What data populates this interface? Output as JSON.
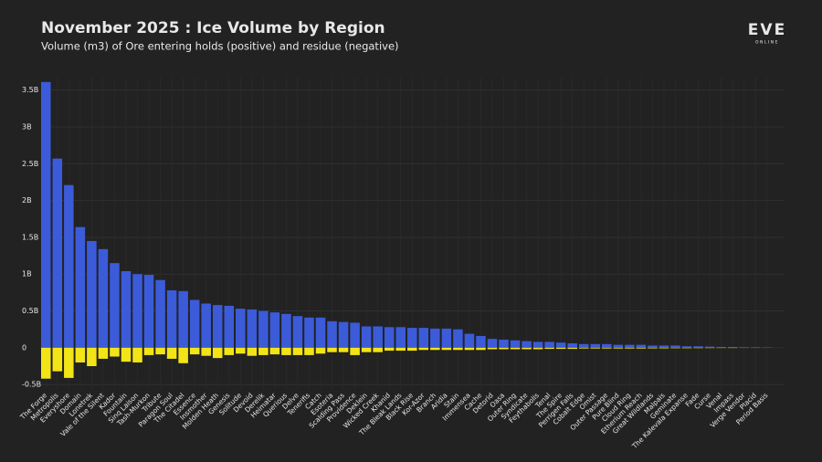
{
  "chart_data": {
    "type": "bar",
    "title": "November 2025 : Ice Volume by Region",
    "subtitle": "Volume (m3) of Ore entering holds (positive) and residue (negative)",
    "logo": "EVE",
    "logo_sub": "ONLINE",
    "categories": [
      "The Forge",
      "Metropolis",
      "Everyshore",
      "Domain",
      "Lonetrek",
      "Vale of the Silent",
      "Kador",
      "Fountain",
      "Sinq Laison",
      "Tash-Murkon",
      "Tribute",
      "Paragon Soul",
      "The Citadel",
      "Essence",
      "Insmother",
      "Molden Heath",
      "Genesis",
      "Solitude",
      "Devoid",
      "Derelik",
      "Heimatar",
      "Querious",
      "Delve",
      "Tenerifis",
      "Catch",
      "Esoteria",
      "Scalding Pass",
      "Providence",
      "Deklein",
      "Wicked Creek",
      "Khanid",
      "The Bleak Lands",
      "Black Rise",
      "Kor-Azor",
      "Branch",
      "Aridia",
      "Stain",
      "Immensea",
      "Cache",
      "Detorid",
      "Oasa",
      "Outer Ring",
      "Syndicate",
      "Feythabolis",
      "Tenal",
      "The Spire",
      "Perrigen Falls",
      "Cobalt Edge",
      "Omist",
      "Outer Passage",
      "Pure Blind",
      "Cloud Ring",
      "Etherium Reach",
      "Great Wildlands",
      "Malpais",
      "Geminate",
      "The Kalevala Expanse",
      "Fade",
      "Curse",
      "Venal",
      "Impass",
      "Verge Vendor",
      "Placid",
      "Period Basis"
    ],
    "series": [
      {
        "color": "#3b5bd9",
        "values": [
          3.61,
          2.57,
          2.21,
          1.64,
          1.45,
          1.34,
          1.15,
          1.04,
          1.0,
          0.99,
          0.92,
          0.78,
          0.77,
          0.65,
          0.6,
          0.58,
          0.57,
          0.53,
          0.52,
          0.5,
          0.48,
          0.46,
          0.43,
          0.41,
          0.41,
          0.36,
          0.35,
          0.34,
          0.29,
          0.29,
          0.28,
          0.28,
          0.27,
          0.27,
          0.26,
          0.26,
          0.25,
          0.19,
          0.16,
          0.12,
          0.11,
          0.1,
          0.09,
          0.08,
          0.08,
          0.07,
          0.06,
          0.05,
          0.05,
          0.05,
          0.04,
          0.04,
          0.04,
          0.03,
          0.03,
          0.03,
          0.02,
          0.02,
          0.015,
          0.01,
          0.01,
          0.005,
          0.004,
          0.003
        ]
      },
      {
        "color": "#f3e418",
        "values": [
          -0.42,
          -0.32,
          -0.41,
          -0.2,
          -0.25,
          -0.15,
          -0.12,
          -0.19,
          -0.2,
          -0.1,
          -0.09,
          -0.15,
          -0.21,
          -0.09,
          -0.11,
          -0.14,
          -0.1,
          -0.08,
          -0.11,
          -0.1,
          -0.09,
          -0.1,
          -0.1,
          -0.1,
          -0.08,
          -0.06,
          -0.06,
          -0.1,
          -0.06,
          -0.06,
          -0.04,
          -0.04,
          -0.04,
          -0.03,
          -0.03,
          -0.03,
          -0.03,
          -0.03,
          -0.03,
          -0.02,
          -0.02,
          -0.02,
          -0.02,
          -0.02,
          -0.015,
          -0.015,
          -0.015,
          -0.01,
          -0.01,
          -0.01,
          -0.01,
          -0.01,
          -0.01,
          -0.008,
          -0.008,
          -0.006,
          -0.006,
          -0.005,
          -0.004,
          -0.003,
          -0.003,
          -0.002,
          -0.002,
          -0.001
        ]
      }
    ],
    "ylim": [
      -0.56,
      3.67
    ],
    "yticks": [
      {
        "value": -0.5,
        "label": "-0.5B"
      },
      0,
      {
        "value": 0.5,
        "label": "0.5B"
      },
      {
        "value": 1,
        "label": "1B"
      },
      {
        "value": 1.5,
        "label": "1.5B"
      },
      {
        "value": 2,
        "label": "2B"
      },
      {
        "value": 2.5,
        "label": "2.5B"
      },
      {
        "value": 3,
        "label": "3B"
      },
      {
        "value": 3.5,
        "label": "3.5B"
      }
    ],
    "grid": true
  }
}
